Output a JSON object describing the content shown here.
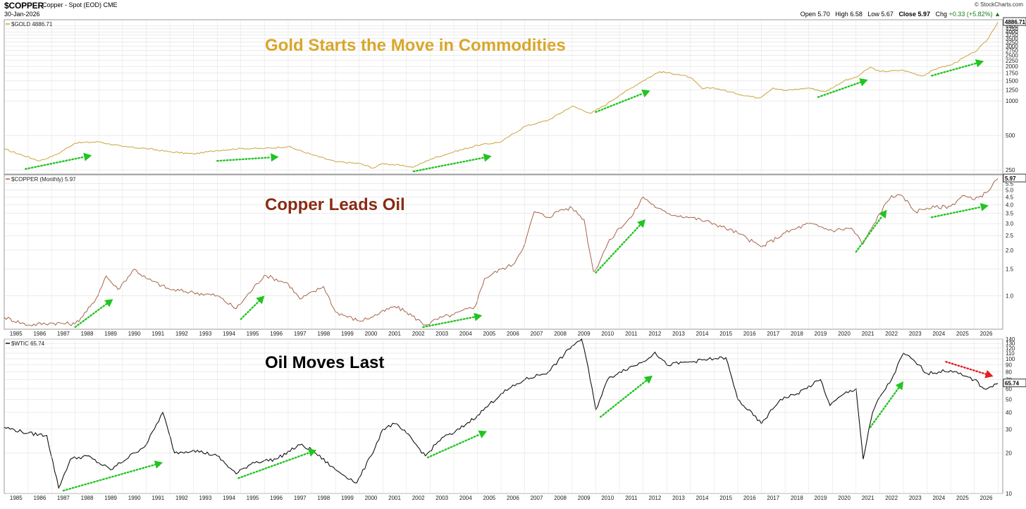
{
  "header": {
    "symbol": "$COPPER",
    "name": "Copper - Spot (EOD)  CME",
    "date": "30-Jan-2026",
    "credit": "© StockCharts.com",
    "open_label": "Open",
    "open": "5.70",
    "high_label": "High",
    "high": "6.58",
    "low_label": "Low",
    "low": "5.67",
    "close_label": "Close",
    "close": "5.97",
    "chg_label": "Chg",
    "chg": "+0.33 (+5.82%) ▲"
  },
  "colors": {
    "gold": "#c9a43b",
    "gold_title": "#d9a62a",
    "copper": "#a5634a",
    "copper_title": "#8a2a12",
    "oil": "#111111",
    "arrow_green": "#22c422",
    "arrow_red": "#e02020",
    "grid": "#d8d8d8"
  },
  "chart_data": [
    {
      "type": "line",
      "legend": "$GOLD 4886.71",
      "annotation": "Gold Starts the Move in Commodities",
      "last_value_label": "4886.71",
      "scale": "log",
      "ylim": [
        230,
        5100
      ],
      "y_ticks": [
        250,
        500,
        1000,
        1250,
        1500,
        1750,
        2000,
        2250,
        2500,
        2750,
        3000,
        3250,
        3500,
        3750,
        4000,
        4250,
        4500
      ],
      "x": [
        1984.0,
        1985.5,
        1986.2,
        1987.0,
        1988.0,
        1989.0,
        1990.0,
        1991.0,
        1992.0,
        1993.0,
        1994.0,
        1995.0,
        1996.0,
        1997.0,
        1998.0,
        1999.0,
        1999.6,
        2000.0,
        2001.0,
        2001.3,
        2002.0,
        2003.0,
        2004.0,
        2005.0,
        2006.0,
        2007.0,
        2008.0,
        2008.8,
        2009.5,
        2010.0,
        2011.0,
        2011.7,
        2012.5,
        2013.0,
        2013.5,
        2014.0,
        2015.0,
        2015.9,
        2016.5,
        2017.0,
        2018.0,
        2018.7,
        2019.5,
        2020.0,
        2020.6,
        2021.0,
        2022.0,
        2022.8,
        2023.5,
        2024.0,
        2024.5,
        2025.0,
        2025.5,
        2026.0
      ],
      "y": [
        380,
        300,
        340,
        430,
        440,
        400,
        385,
        360,
        345,
        370,
        385,
        385,
        400,
        340,
        295,
        285,
        260,
        285,
        270,
        265,
        310,
        360,
        410,
        440,
        600,
        680,
        900,
        780,
        950,
        1120,
        1500,
        1800,
        1700,
        1600,
        1280,
        1300,
        1150,
        1060,
        1300,
        1230,
        1300,
        1200,
        1500,
        1600,
        1970,
        1800,
        1850,
        1650,
        1950,
        2050,
        2350,
        2650,
        3300,
        4886.71
      ]
    },
    {
      "type": "line",
      "legend": "$COPPER (Monthly) 5.97",
      "annotation": "Copper Leads Oil",
      "last_value_label": "5.97",
      "scale": "log",
      "ylim": [
        0.6,
        6.3
      ],
      "y_ticks": [
        1.0,
        1.5,
        2.0,
        2.5,
        3.0,
        3.5,
        4.0,
        4.5,
        5.0,
        5.5
      ],
      "x": [
        1984.0,
        1985.0,
        1986.0,
        1987.0,
        1987.8,
        1988.3,
        1988.8,
        1989.5,
        1990.0,
        1991.0,
        1992.0,
        1993.0,
        1993.8,
        1995.0,
        1996.0,
        1996.5,
        1997.5,
        1998.0,
        1999.0,
        1999.5,
        2000.5,
        2001.0,
        2001.8,
        2002.5,
        2003.0,
        2003.9,
        2004.3,
        2005.0,
        2005.5,
        2006.0,
        2006.4,
        2007.0,
        2007.5,
        2008.0,
        2008.5,
        2008.9,
        2009.0,
        2009.5,
        2010.0,
        2010.5,
        2011.0,
        2011.6,
        2012.0,
        2013.0,
        2014.0,
        2015.0,
        2016.0,
        2017.0,
        2018.0,
        2019.0,
        2019.8,
        2020.3,
        2021.0,
        2021.5,
        2022.0,
        2022.5,
        2023.0,
        2024.0,
        2024.5,
        2025.0,
        2025.5,
        2026.0
      ],
      "y": [
        0.72,
        0.64,
        0.66,
        0.65,
        0.9,
        1.35,
        1.1,
        1.5,
        1.3,
        1.1,
        1.05,
        1.0,
        0.82,
        1.37,
        1.2,
        0.95,
        1.15,
        0.78,
        0.68,
        0.72,
        0.85,
        0.78,
        0.64,
        0.72,
        0.75,
        0.85,
        1.3,
        1.5,
        1.6,
        2.2,
        3.6,
        3.3,
        3.7,
        3.8,
        3.2,
        1.45,
        1.5,
        2.2,
        2.8,
        3.3,
        4.5,
        3.8,
        3.5,
        3.3,
        3.0,
        2.6,
        2.1,
        2.6,
        3.0,
        2.7,
        2.8,
        2.2,
        3.5,
        4.6,
        4.5,
        3.6,
        3.8,
        3.9,
        4.6,
        4.3,
        4.8,
        5.97
      ]
    },
    {
      "type": "line",
      "legend": "$WTIC 65.74",
      "annotation": "Oil Moves Last",
      "last_value_label": "65.74",
      "scale": "log",
      "ylim": [
        10,
        140
      ],
      "y_ticks": [
        10,
        20,
        30,
        40,
        50,
        60,
        70,
        80,
        90,
        100,
        110,
        120,
        130,
        140
      ],
      "x": [
        1984.0,
        1985.0,
        1985.8,
        1986.3,
        1986.8,
        1987.5,
        1988.5,
        1989.5,
        1990.0,
        1990.7,
        1991.2,
        1992.0,
        1993.0,
        1993.8,
        1994.5,
        1995.5,
        1996.5,
        1997.0,
        1998.0,
        1998.9,
        1999.5,
        2000.0,
        2000.5,
        2001.0,
        2001.8,
        2002.5,
        2003.0,
        2004.0,
        2005.0,
        2006.0,
        2007.0,
        2008.0,
        2008.4,
        2008.6,
        2009.0,
        2009.5,
        2010.0,
        2011.0,
        2011.5,
        2012.0,
        2013.0,
        2014.0,
        2014.5,
        2015.0,
        2016.0,
        2016.8,
        2017.5,
        2018.5,
        2018.9,
        2019.5,
        2020.0,
        2020.3,
        2020.7,
        2021.0,
        2021.5,
        2022.0,
        2022.5,
        2023.0,
        2024.0,
        2024.5,
        2025.0,
        2025.4,
        2025.7,
        2026.0
      ],
      "y": [
        31,
        28,
        27,
        11,
        18,
        19,
        15,
        20,
        23,
        40,
        20,
        21,
        19,
        14,
        17,
        18,
        23,
        21,
        15,
        12,
        19,
        30,
        33,
        28,
        19,
        26,
        28,
        38,
        55,
        70,
        80,
        125,
        140,
        100,
        42,
        70,
        80,
        95,
        112,
        90,
        95,
        100,
        102,
        50,
        33,
        50,
        55,
        70,
        45,
        55,
        60,
        18,
        40,
        52,
        70,
        110,
        95,
        78,
        82,
        75,
        70,
        60,
        62,
        65.74
      ]
    }
  ],
  "x_axis_labels": [
    "1985",
    "1986",
    "1987",
    "1988",
    "1989",
    "1990",
    "1991",
    "1992",
    "1993",
    "1994",
    "1995",
    "1996",
    "1997",
    "1998",
    "1999",
    "2000",
    "2001",
    "2002",
    "2003",
    "2004",
    "2005",
    "2006",
    "2007",
    "2008",
    "2009",
    "2010",
    "2011",
    "2012",
    "2013",
    "2014",
    "2015",
    "2016",
    "2017",
    "2018",
    "2019",
    "2020",
    "2021",
    "2022",
    "2023",
    "2024",
    "2025",
    "2026"
  ],
  "arrows": [
    {
      "panel": 0,
      "from": [
        1984.9,
        255
      ],
      "to": [
        1987.7,
        335
      ],
      "color": "green"
    },
    {
      "panel": 0,
      "from": [
        1993.0,
        300
      ],
      "to": [
        1995.6,
        325
      ],
      "color": "green"
    },
    {
      "panel": 0,
      "from": [
        2001.3,
        243
      ],
      "to": [
        2004.6,
        330
      ],
      "color": "green"
    },
    {
      "panel": 0,
      "from": [
        2009.0,
        800
      ],
      "to": [
        2011.3,
        1230
      ],
      "color": "green"
    },
    {
      "panel": 0,
      "from": [
        2018.4,
        1080
      ],
      "to": [
        2020.5,
        1530
      ],
      "color": "green"
    },
    {
      "panel": 0,
      "from": [
        2023.2,
        1660
      ],
      "to": [
        2025.4,
        2220
      ],
      "color": "green"
    },
    {
      "panel": 1,
      "from": [
        1987.0,
        0.62
      ],
      "to": [
        1988.6,
        0.95
      ],
      "color": "green"
    },
    {
      "panel": 1,
      "from": [
        1994.0,
        0.7
      ],
      "to": [
        1995.0,
        1.0
      ],
      "color": "green"
    },
    {
      "panel": 1,
      "from": [
        2001.7,
        0.62
      ],
      "to": [
        2004.2,
        0.74
      ],
      "color": "green"
    },
    {
      "panel": 1,
      "from": [
        2009.0,
        1.42
      ],
      "to": [
        2011.1,
        3.2
      ],
      "color": "green"
    },
    {
      "panel": 1,
      "from": [
        2020.0,
        1.95
      ],
      "to": [
        2021.3,
        3.7
      ],
      "color": "green"
    },
    {
      "panel": 1,
      "from": [
        2023.2,
        3.3
      ],
      "to": [
        2025.6,
        3.95
      ],
      "color": "green"
    },
    {
      "panel": 2,
      "from": [
        1986.5,
        10.5
      ],
      "to": [
        1990.7,
        17
      ],
      "color": "green"
    },
    {
      "panel": 2,
      "from": [
        1993.9,
        13
      ],
      "to": [
        1997.2,
        21
      ],
      "color": "green"
    },
    {
      "panel": 2,
      "from": [
        2001.9,
        18.5
      ],
      "to": [
        2004.4,
        29
      ],
      "color": "green"
    },
    {
      "panel": 2,
      "from": [
        2009.2,
        37
      ],
      "to": [
        2011.4,
        75
      ],
      "color": "green"
    },
    {
      "panel": 2,
      "from": [
        2020.6,
        31
      ],
      "to": [
        2022.0,
        68
      ],
      "color": "green"
    },
    {
      "panel": 2,
      "from": [
        2023.8,
        95
      ],
      "to": [
        2025.8,
        74
      ],
      "color": "red"
    }
  ]
}
